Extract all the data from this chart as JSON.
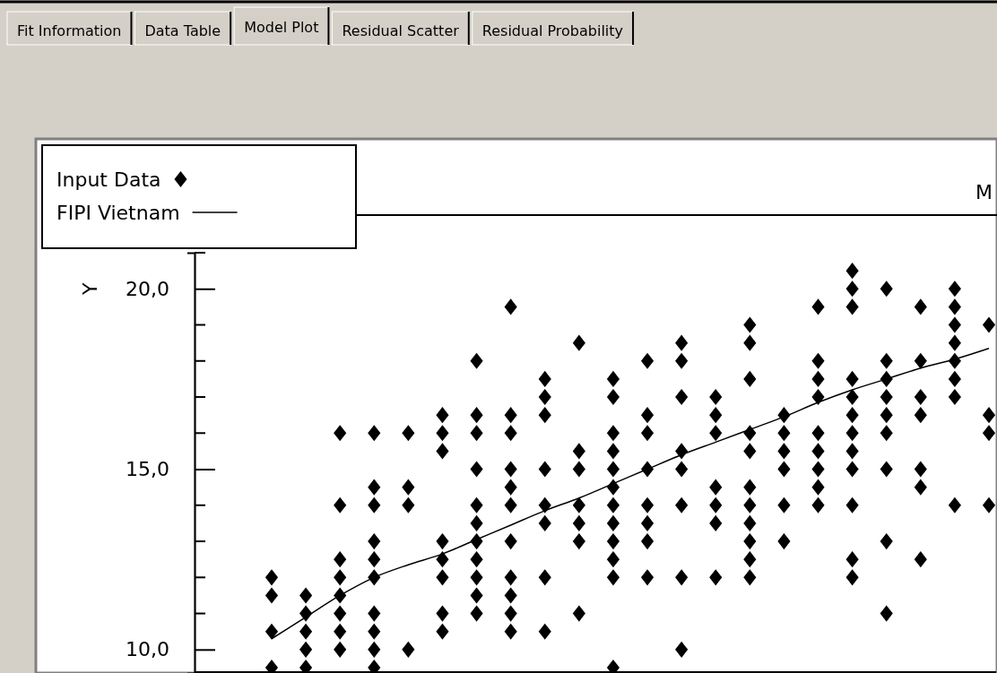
{
  "chart_data": {
    "type": "scatter",
    "title": "M",
    "ylabel": "Y",
    "annotations": [
      "Fit Information",
      "Data Table",
      "Model Plot",
      "Residual Scatter",
      "Residual Probability"
    ],
    "categories": [
      null,
      null,
      null,
      null,
      null,
      null,
      null,
      null,
      null,
      null,
      null,
      null,
      null,
      null,
      null,
      null,
      null,
      null,
      null,
      null,
      null,
      null
    ],
    "ylim": [
      9.35,
      21
    ],
    "tick_labels": "y",
    "yticks": [
      {
        "value": 10,
        "label": "10,0"
      },
      {
        "value": 15,
        "label": "15,0"
      },
      {
        "value": 20,
        "label": "20,0"
      }
    ],
    "legend": "top left",
    "series": [
      {
        "name": "Input Data",
        "color": "#000000",
        "marker": "diamond",
        "values": [
          12,
          11.5,
          16,
          16,
          16,
          16.5,
          18,
          19.5,
          17.5,
          18.5,
          17.5,
          18,
          18.5,
          17,
          19,
          16.5,
          19.5,
          20.5,
          20,
          19.5,
          20,
          19
        ]
      },
      {
        "color": "#000000",
        "marker": "diamond",
        "values": [
          11.5,
          11,
          14,
          14.5,
          14.5,
          16,
          16.5,
          16.5,
          17,
          15.5,
          17,
          16.5,
          18,
          16.5,
          18.5,
          16,
          18,
          20,
          18,
          18,
          19.5,
          16.5
        ]
      },
      {
        "color": "#000000",
        "marker": "diamond",
        "values": [
          10.5,
          10.5,
          12.5,
          14,
          14,
          15.5,
          16,
          16,
          16.5,
          15,
          16,
          16,
          17,
          16,
          17.5,
          15.5,
          17.5,
          19.5,
          17.5,
          17,
          19,
          16
        ]
      },
      {
        "color": "#000000",
        "marker": "diamond",
        "values": [
          9.5,
          10,
          12,
          13,
          10,
          13,
          15,
          15,
          15,
          14,
          15.5,
          15,
          15.5,
          14.5,
          16,
          15,
          17,
          17.5,
          17,
          16.5,
          18.5,
          14
        ]
      },
      {
        "color": "#000000",
        "marker": "diamond",
        "values": [
          null,
          9.5,
          11.5,
          12.5,
          null,
          12.5,
          14,
          14.5,
          14,
          13.5,
          15,
          14,
          15,
          14,
          15.5,
          14,
          16,
          17,
          16.5,
          15,
          18,
          null
        ]
      },
      {
        "color": "#000000",
        "marker": "diamond",
        "values": [
          null,
          null,
          11,
          12,
          null,
          12,
          13.5,
          14,
          13.5,
          13,
          14.5,
          13.5,
          14,
          13.5,
          14.5,
          13,
          15.5,
          16.5,
          16,
          14.5,
          17.5,
          null
        ]
      },
      {
        "color": "#000000",
        "marker": "diamond",
        "values": [
          null,
          null,
          10.5,
          11,
          null,
          11,
          13,
          13,
          12,
          11,
          14,
          13,
          12,
          12,
          14,
          null,
          15,
          16,
          15,
          12.5,
          17,
          null
        ]
      },
      {
        "color": "#000000",
        "marker": "diamond",
        "values": [
          null,
          null,
          10,
          10.5,
          null,
          10.5,
          12.5,
          12,
          10.5,
          null,
          13.5,
          12,
          10,
          null,
          13.5,
          null,
          14.5,
          15.5,
          13,
          null,
          14,
          null
        ]
      },
      {
        "color": "#000000",
        "marker": "diamond",
        "values": [
          null,
          null,
          null,
          10,
          null,
          null,
          12,
          11.5,
          null,
          null,
          13,
          null,
          null,
          null,
          13,
          null,
          14,
          15,
          11,
          null,
          null,
          null
        ]
      },
      {
        "color": "#000000",
        "marker": "diamond",
        "values": [
          null,
          null,
          null,
          9.5,
          null,
          null,
          11.5,
          11,
          null,
          null,
          12.5,
          null,
          null,
          null,
          12.5,
          null,
          null,
          14,
          null,
          null,
          null,
          null
        ]
      },
      {
        "color": "#000000",
        "marker": "diamond",
        "values": [
          null,
          null,
          null,
          null,
          null,
          null,
          11,
          10.5,
          null,
          null,
          12,
          null,
          null,
          null,
          12,
          null,
          null,
          12.5,
          null,
          null,
          null,
          null
        ]
      },
      {
        "color": "#000000",
        "marker": "diamond",
        "values": [
          null,
          null,
          null,
          null,
          null,
          null,
          null,
          null,
          null,
          null,
          9.5,
          null,
          null,
          null,
          null,
          null,
          null,
          12,
          null,
          null,
          null,
          null
        ]
      },
      {
        "name": "FIPI Vietnam",
        "type": "line",
        "color": "#000000",
        "line_style": "solid",
        "values": [
          10.3,
          10.9,
          11.5,
          12.0,
          12.35,
          12.65,
          13.05,
          13.45,
          13.85,
          14.2,
          14.6,
          15.0,
          15.4,
          15.75,
          16.1,
          16.45,
          16.85,
          17.2,
          17.5,
          17.8,
          18.05,
          18.35
        ]
      }
    ]
  }
}
